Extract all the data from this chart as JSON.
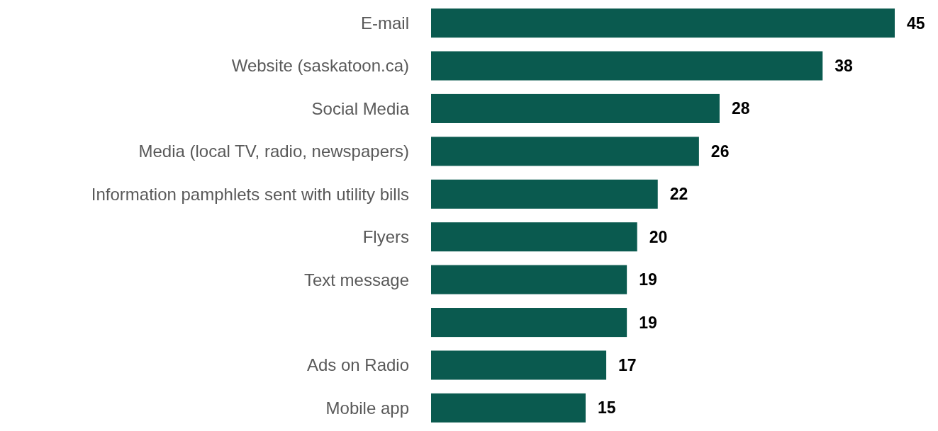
{
  "chart_data": {
    "type": "bar",
    "orientation": "horizontal",
    "categories": [
      "E-mail",
      "Website (saskatoon.ca)",
      "Social Media",
      "Media (local TV, radio, newspapers)",
      "Information pamphlets sent with utility bills",
      "Flyers",
      "Text message",
      null,
      "Ads on Radio",
      "Mobile app"
    ],
    "values": [
      45,
      38,
      28,
      26,
      22,
      20,
      19,
      19,
      17,
      15
    ],
    "color": "#0a5a4f",
    "data_labels": true
  }
}
